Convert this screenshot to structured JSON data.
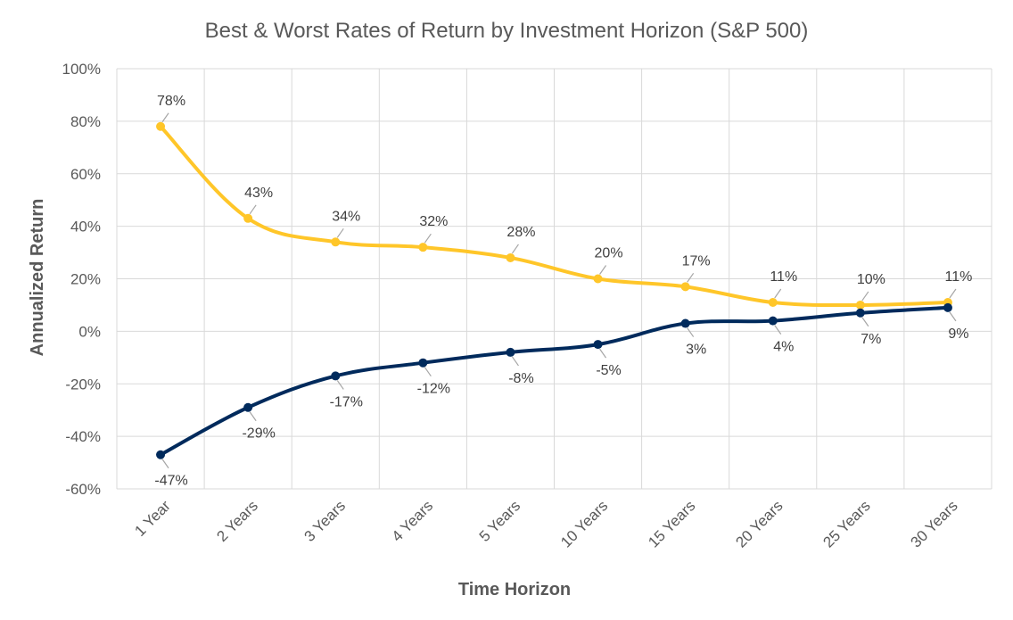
{
  "chart_data": {
    "type": "line",
    "title": "Best & Worst Rates of Return by Investment Horizon (S&P 500)",
    "xlabel": "Time Horizon",
    "ylabel": "Annualized Return",
    "categories": [
      "1 Year",
      "2 Years",
      "3 Years",
      "4 Years",
      "5 Years",
      "10 Years",
      "15 Years",
      "20 Years",
      "25 Years",
      "30 Years"
    ],
    "ylim": [
      -60,
      100
    ],
    "yticks": [
      -60,
      -40,
      -20,
      0,
      20,
      40,
      60,
      80,
      100
    ],
    "ytick_labels": [
      "-60%",
      "-40%",
      "-20%",
      "0%",
      "20%",
      "40%",
      "60%",
      "80%",
      "100%"
    ],
    "grid": true,
    "series": [
      {
        "color": "#FFC629",
        "values": [
          78,
          43,
          34,
          32,
          28,
          20,
          17,
          11,
          10,
          11
        ],
        "labels": [
          "78%",
          "43%",
          "34%",
          "32%",
          "28%",
          "20%",
          "17%",
          "11%",
          "10%",
          "11%"
        ]
      },
      {
        "color": "#002A5C",
        "values": [
          -47,
          -29,
          -17,
          -12,
          -8,
          -5,
          3,
          4,
          7,
          9
        ],
        "labels": [
          "-47%",
          "-29%",
          "-17%",
          "-12%",
          "-8%",
          "-5%",
          "3%",
          "4%",
          "7%",
          "9%"
        ]
      }
    ],
    "colors": {
      "grid": "#D9D9D9",
      "text": "#595959",
      "leader": "#A6A6A6"
    }
  }
}
